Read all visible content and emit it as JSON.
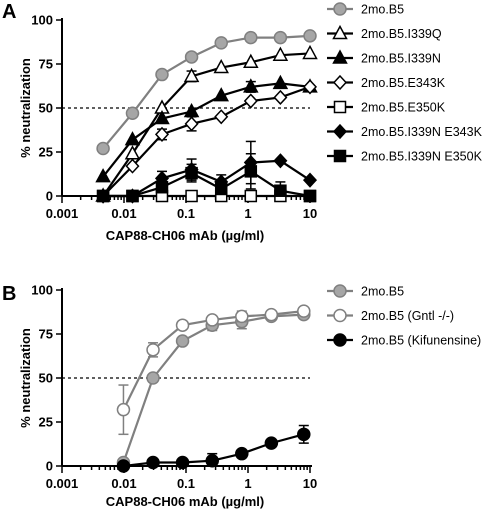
{
  "chart_data": [
    {
      "panel_label": "A",
      "type": "line",
      "xscale": "log",
      "xlim": [
        0.001,
        10
      ],
      "ylim": [
        0,
        100
      ],
      "xticks": [
        "0.001",
        "0.01",
        "0.1",
        "1",
        "10"
      ],
      "yticks": [
        "0",
        "25",
        "50",
        "75",
        "100"
      ],
      "xlabel": "CAP88-CH06 mAb (µg/ml)",
      "ylabel": "% neutralization",
      "reference_line_y": 50,
      "x": [
        0.0046,
        0.0137,
        0.041,
        0.123,
        0.37,
        1.11,
        3.33,
        10
      ],
      "series": [
        {
          "name": "2mo.B5",
          "marker": "circle",
          "fill": "#a6a6a6",
          "line": "#808080",
          "values": [
            27,
            47,
            69,
            79,
            87,
            90,
            90,
            91
          ],
          "errors": [
            0,
            0,
            0,
            0,
            0,
            0,
            0,
            0
          ]
        },
        {
          "name": "2mo.B5.I339Q",
          "marker": "triangle",
          "fill": "#ffffff",
          "line": "#000000",
          "values": [
            0,
            24,
            50,
            68,
            73,
            76,
            80,
            81
          ],
          "errors": [
            0,
            0,
            0,
            3,
            0,
            0,
            0,
            0
          ]
        },
        {
          "name": "2mo.B5.I339N",
          "marker": "triangle",
          "fill": "#000000",
          "line": "#000000",
          "values": [
            11,
            32,
            44,
            48,
            57,
            62,
            64,
            62
          ],
          "errors": [
            0,
            0,
            0,
            0,
            0,
            3,
            0,
            0
          ]
        },
        {
          "name": "2mo.B5.E343K",
          "marker": "diamond",
          "fill": "#ffffff",
          "line": "#000000",
          "values": [
            0,
            17,
            35,
            41,
            45,
            54,
            56,
            62
          ],
          "errors": [
            0,
            0,
            3,
            4,
            0,
            0,
            0,
            0
          ]
        },
        {
          "name": "2mo.B5.E350K",
          "marker": "square",
          "fill": "#ffffff",
          "line": "#000000",
          "values": [
            0,
            0,
            0,
            0,
            0,
            0,
            0,
            0
          ],
          "errors": [
            0,
            0,
            0,
            0,
            0,
            0,
            0,
            0
          ]
        },
        {
          "name": "2mo.B5.I339N E343K",
          "marker": "diamond",
          "fill": "#000000",
          "line": "#000000",
          "values": [
            0,
            0,
            10,
            15,
            8,
            19,
            20,
            9
          ],
          "errors": [
            0,
            0,
            4,
            6,
            4,
            12,
            0,
            0
          ]
        },
        {
          "name": "2mo.B5.I339N E350K",
          "marker": "square",
          "fill": "#000000",
          "line": "#000000",
          "values": [
            0,
            0,
            5,
            13,
            4,
            14,
            3,
            0
          ],
          "errors": [
            0,
            0,
            3,
            5,
            3,
            10,
            5,
            0
          ]
        }
      ]
    },
    {
      "panel_label": "B",
      "type": "line",
      "xscale": "log",
      "xlim": [
        0.001,
        10
      ],
      "ylim": [
        0,
        100
      ],
      "xticks": [
        "0.001",
        "0.01",
        "0.1",
        "1",
        "10"
      ],
      "yticks": [
        "0",
        "25",
        "50",
        "75",
        "100"
      ],
      "xlabel": "CAP88-CH06 mAb (µg/ml)",
      "ylabel": "% neutralization",
      "reference_line_y": 50,
      "x": [
        0.0098,
        0.0294,
        0.088,
        0.265,
        0.794,
        2.38,
        7.94
      ],
      "series": [
        {
          "name": "2mo.B5",
          "marker": "circle",
          "fill": "#a6a6a6",
          "line": "#808080",
          "values": [
            2,
            50,
            71,
            80,
            82,
            85,
            86
          ],
          "errors": [
            2,
            0,
            0,
            3,
            4,
            0,
            2
          ]
        },
        {
          "name": "2mo.B5 (Gntl -/-)",
          "marker": "circle",
          "fill": "#ffffff",
          "line": "#808080",
          "values": [
            32,
            66,
            80,
            83,
            85,
            86,
            88
          ],
          "errors": [
            14,
            4,
            0,
            0,
            3,
            0,
            0
          ]
        },
        {
          "name": "2mo.B5 (Kifunensine)",
          "marker": "circle",
          "fill": "#000000",
          "line": "#000000",
          "values": [
            0,
            2,
            2,
            3,
            7,
            13,
            18
          ],
          "errors": [
            0,
            0,
            0,
            4,
            0,
            0,
            5
          ]
        }
      ]
    }
  ]
}
